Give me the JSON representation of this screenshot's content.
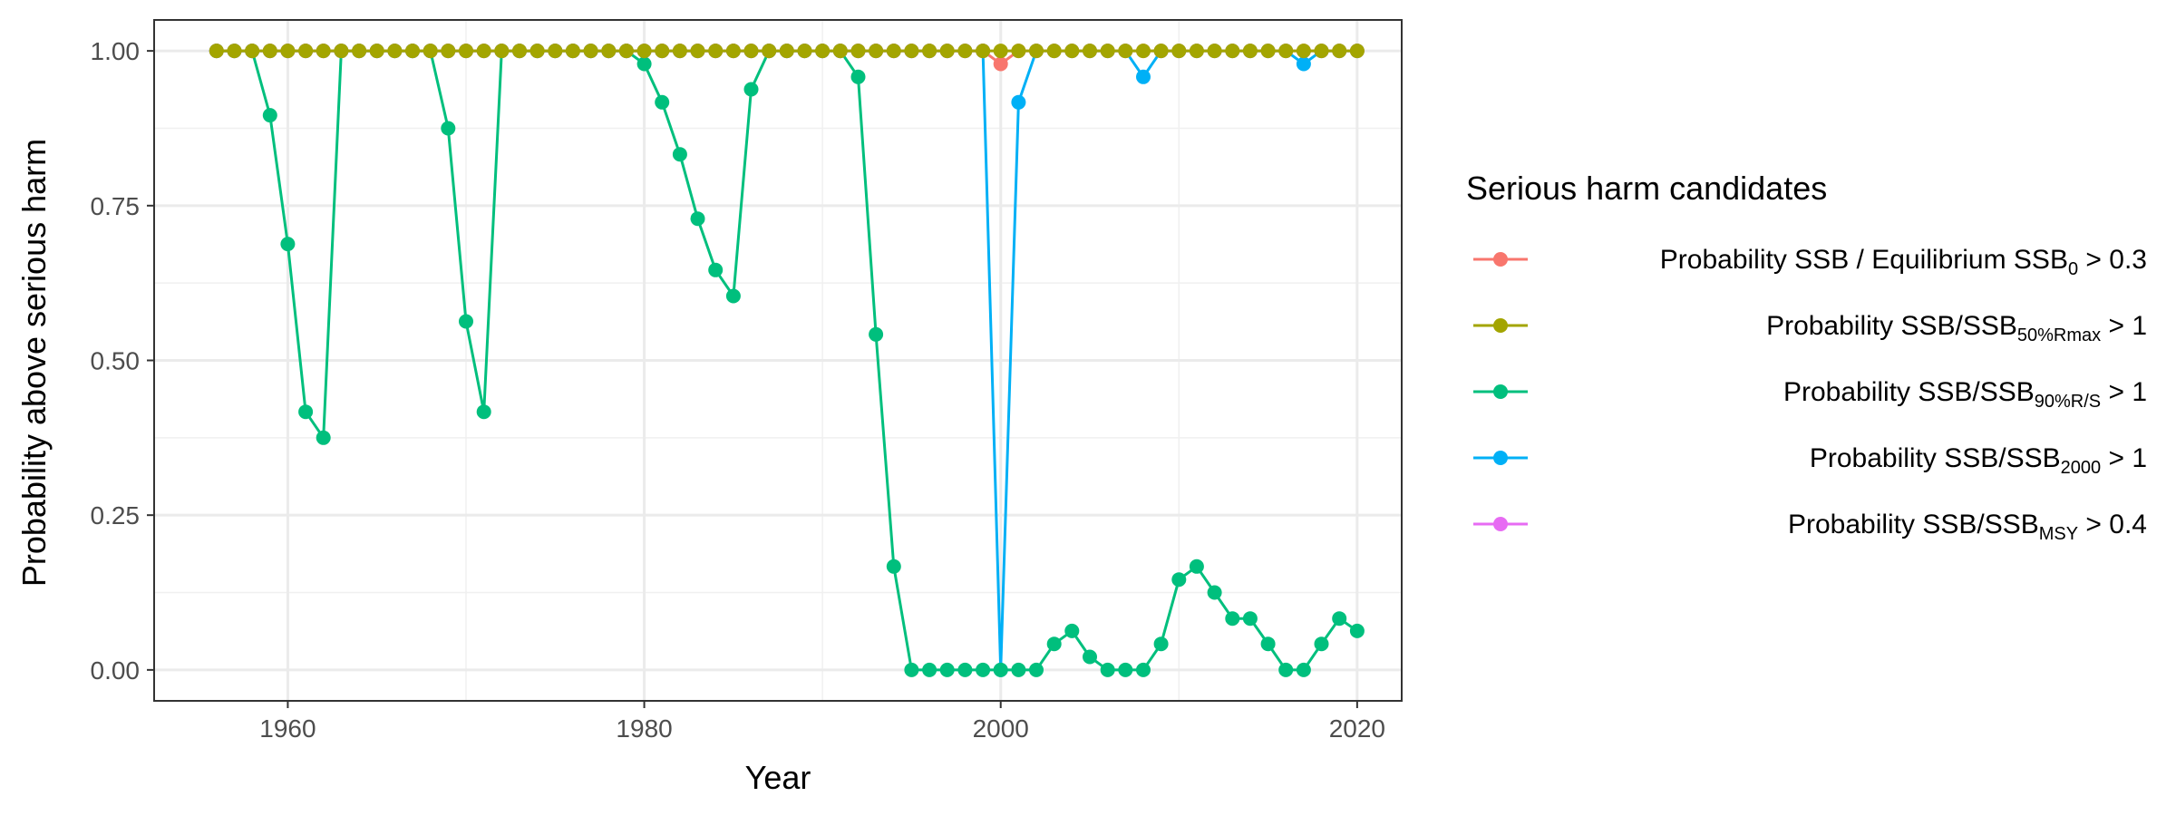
{
  "chart_data": {
    "type": "line",
    "xlabel": "Year",
    "ylabel": "Probability above serious harm",
    "xlim": [
      1952.5,
      2022.5
    ],
    "ylim": [
      -0.05,
      1.05
    ],
    "x_ticks": [
      1960,
      1980,
      2000,
      2020
    ],
    "y_ticks": [
      0,
      0.25,
      0.5,
      0.75,
      1.0
    ],
    "x_tick_labels": [
      "1960",
      "1980",
      "2000",
      "2020"
    ],
    "y_tick_labels": [
      "0.00",
      "0.25",
      "0.50",
      "0.75",
      "1.00"
    ],
    "grid": true,
    "legend": {
      "title": "Serious harm candidates",
      "position": "right",
      "entries": [
        {
          "prefix": "Probability SSB / Equilibrium SSB",
          "sub": "0",
          "suffix": " > 0.3"
        },
        {
          "prefix": "Probability SSB/SSB",
          "sub": "50%Rmax",
          "suffix": " > 1"
        },
        {
          "prefix": "Probability SSB/SSB",
          "sub": "90%R/S",
          "suffix": " > 1"
        },
        {
          "prefix": "Probability SSB/SSB",
          "sub": "2000",
          "suffix": " > 1"
        },
        {
          "prefix": "Probability SSB/SSB",
          "sub": "MSY",
          "suffix": " > 0.4"
        }
      ]
    },
    "x": [
      1956,
      1957,
      1958,
      1959,
      1960,
      1961,
      1962,
      1963,
      1964,
      1965,
      1966,
      1967,
      1968,
      1969,
      1970,
      1971,
      1972,
      1973,
      1974,
      1975,
      1976,
      1977,
      1978,
      1979,
      1980,
      1981,
      1982,
      1983,
      1984,
      1985,
      1986,
      1987,
      1988,
      1989,
      1990,
      1991,
      1992,
      1993,
      1994,
      1995,
      1996,
      1997,
      1998,
      1999,
      2000,
      2001,
      2002,
      2003,
      2004,
      2005,
      2006,
      2007,
      2008,
      2009,
      2010,
      2011,
      2012,
      2013,
      2014,
      2015,
      2016,
      2017,
      2018,
      2019,
      2020
    ],
    "series": [
      {
        "color": "#F8766D",
        "values": [
          1,
          1,
          1,
          1,
          1,
          1,
          1,
          1,
          1,
          1,
          1,
          1,
          1,
          1,
          1,
          1,
          1,
          1,
          1,
          1,
          1,
          1,
          1,
          1,
          1,
          1,
          1,
          1,
          1,
          1,
          1,
          1,
          1,
          1,
          1,
          1,
          1,
          1,
          1,
          1,
          1,
          1,
          1,
          1,
          0.979,
          1,
          1,
          1,
          1,
          1,
          1,
          1,
          1,
          1,
          1,
          1,
          1,
          1,
          1,
          1,
          1,
          1,
          1,
          1,
          1
        ]
      },
      {
        "color": "#A3A500",
        "values": [
          1,
          1,
          1,
          1,
          1,
          1,
          1,
          1,
          1,
          1,
          1,
          1,
          1,
          1,
          1,
          1,
          1,
          1,
          1,
          1,
          1,
          1,
          1,
          1,
          1,
          1,
          1,
          1,
          1,
          1,
          1,
          1,
          1,
          1,
          1,
          1,
          1,
          1,
          1,
          1,
          1,
          1,
          1,
          1,
          1,
          1,
          1,
          1,
          1,
          1,
          1,
          1,
          1,
          1,
          1,
          1,
          1,
          1,
          1,
          1,
          1,
          1,
          1,
          1,
          1
        ]
      },
      {
        "color": "#00BF7D",
        "values": [
          1,
          1,
          1,
          0.896,
          0.688,
          0.417,
          0.375,
          1,
          1,
          1,
          1,
          1,
          1,
          0.875,
          0.563,
          0.417,
          1,
          1,
          1,
          1,
          1,
          1,
          1,
          1,
          0.979,
          0.917,
          0.833,
          0.729,
          0.646,
          0.604,
          0.938,
          1,
          1,
          1,
          1,
          1,
          0.958,
          0.542,
          0.167,
          0,
          0,
          0,
          0,
          0,
          0,
          0,
          0,
          0.042,
          0.063,
          0.021,
          0,
          0,
          0,
          0.042,
          0.146,
          0.167,
          0.125,
          0.083,
          0.083,
          0.042,
          0,
          0,
          0.042,
          0.083,
          0.063
        ]
      },
      {
        "color": "#00B0F6",
        "values": [
          1,
          1,
          1,
          1,
          1,
          1,
          1,
          1,
          1,
          1,
          1,
          1,
          1,
          1,
          1,
          1,
          1,
          1,
          1,
          1,
          1,
          1,
          1,
          1,
          1,
          1,
          1,
          1,
          1,
          1,
          1,
          1,
          1,
          1,
          1,
          1,
          1,
          1,
          1,
          1,
          1,
          1,
          1,
          1,
          0,
          0.917,
          1,
          1,
          1,
          1,
          1,
          1,
          0.958,
          1,
          1,
          1,
          1,
          1,
          1,
          1,
          1,
          0.979,
          1,
          1,
          1
        ]
      },
      {
        "color": "#E76BF3",
        "values": [
          1,
          1,
          1,
          1,
          1,
          1,
          1,
          1,
          1,
          1,
          1,
          1,
          1,
          1,
          1,
          1,
          1,
          1,
          1,
          1,
          1,
          1,
          1,
          1,
          1,
          1,
          1,
          1,
          1,
          1,
          1,
          1,
          1,
          1,
          1,
          1,
          1,
          1,
          1,
          1,
          1,
          1,
          1,
          1,
          null,
          null,
          null,
          null,
          null,
          null,
          null,
          null,
          null,
          null,
          null,
          null,
          null,
          null,
          null,
          null,
          null,
          null,
          null,
          null,
          null
        ]
      }
    ],
    "draw_order": [
      4,
      3,
      2,
      0,
      1
    ]
  }
}
